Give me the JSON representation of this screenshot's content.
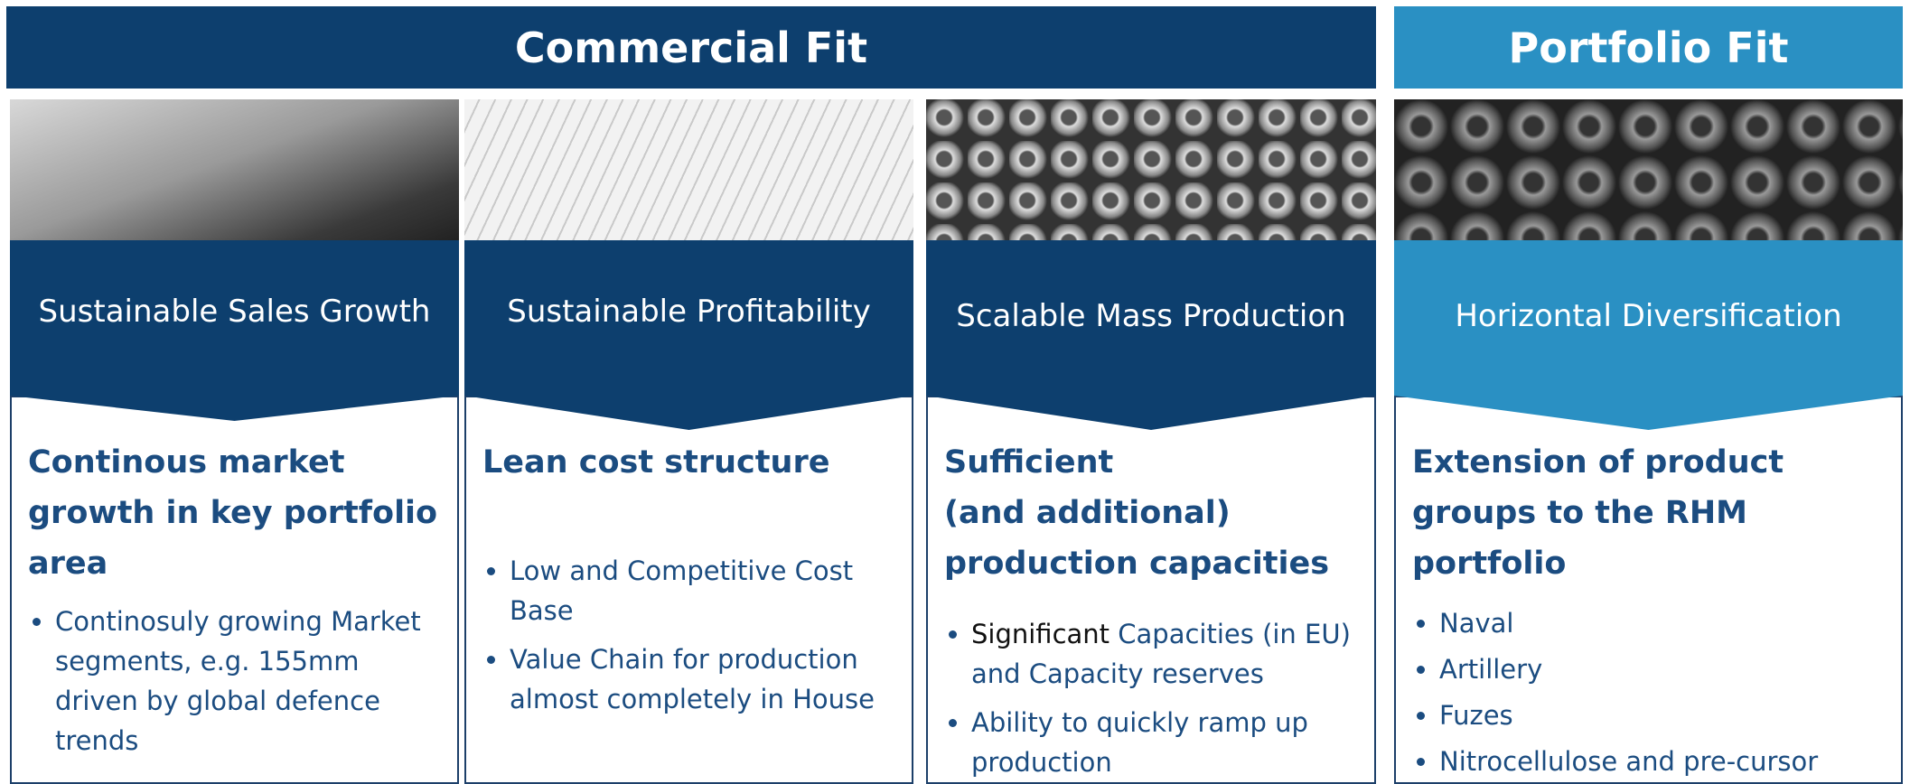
{
  "header": {
    "commercial_fit": "Commercial Fit",
    "portfolio_fit": "Portfolio Fit"
  },
  "columns": [
    {
      "label": "Sustainable Sales Growth",
      "heading": "Continous market growth in key portfolio area",
      "bullets": [
        "Continosuly growing Market segments, e.g. 155mm driven by global defence trends"
      ]
    },
    {
      "label": "Sustainable Profitability",
      "heading": "Lean cost structure",
      "bullets": [
        "Low and Competitive Cost Base",
        "Value Chain for production almost completely in House"
      ]
    },
    {
      "label": "Scalable Mass Production",
      "heading": "Sufficient\n(and additional)\nproduction capacities",
      "bullets": [
        {
          "lead": "Significant",
          "text": " Capacities (in EU) and Capacity reserves"
        },
        "Ability to quickly ramp up production"
      ]
    },
    {
      "label": "Horizontal Diversification",
      "heading": "Extension of product groups to the  RHM portfolio",
      "bullets": [
        "Naval",
        "Artillery",
        "Fuzes",
        "Nitrocellulose and pre-cursor"
      ]
    }
  ]
}
